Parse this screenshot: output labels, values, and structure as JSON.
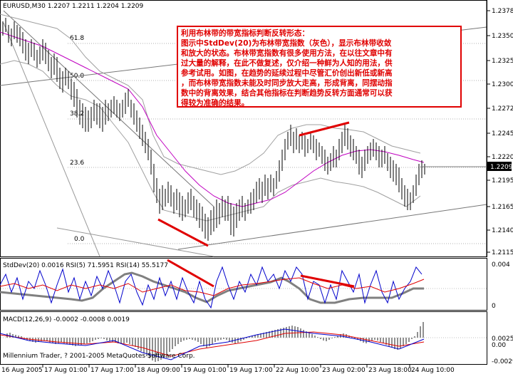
{
  "main": {
    "header": "EURUSD,M30  1.2207 1.2211 1.2204 1.2209",
    "fib_labels": [
      "61.8",
      "50.0",
      "38.2",
      "23.6",
      "0.0"
    ],
    "price_ticks": [
      "1.2378",
      "1.2350",
      "1.2325",
      "1.2300",
      "1.2272",
      "1.2245",
      "1.2220",
      "1.2195",
      "1.2165",
      "1.2140",
      "1.2115"
    ],
    "current_price": "1.2209"
  },
  "annotation": {
    "lines": [
      "利用布林带的带宽指标判断反转形态：",
      "图示中StdDev(20)为布林带宽指数（灰色），显示布林带收敛",
      "和放大的状态。布林带宽指数有很多使用方法，在以往文章中有",
      "过大量的解释，在此不做复述，仅介绍一种鲜为人知的用法，供",
      "参考试用。如图，在趋势的延续过程中尽管汇价创出新低或新高",
      "，而布林带宽指数未能及时同步放大走高，形成背离，同摆动指",
      "数中的背离效果，结合其他指标在判断趋势反转方面通常可以获",
      "得较为准确的结果。"
    ]
  },
  "indicator": {
    "header": "StdDev(20) 0.0016  RSI(5) 71.5951  RSI(14) 55.5177",
    "ticks": [
      "0.004",
      "0"
    ]
  },
  "macd": {
    "header": "MACD(12,26,9) -0.0002 -0.0008 0.0019",
    "ticks": [
      "0.0025",
      "0.00",
      "-0.0029"
    ],
    "copyright": "Millennium Trader, ? 2001-2005 MetaQuotes Software Corp."
  },
  "time_axis": [
    "16 Aug 2005",
    "17 Aug 01:00",
    "17 Aug 17:00",
    "18 Aug 09:00",
    "19 Aug 01:00",
    "19 Aug 17:00",
    "22 Aug 10:00",
    "23 Aug 02:00",
    "23 Aug 18:00",
    "24 Aug 10:00"
  ],
  "colors": {
    "annotation": "#e00000",
    "stddev": "#808080",
    "rsi5": "#0000cc",
    "rsi14": "#e00000",
    "ma": "#c000c0"
  }
}
